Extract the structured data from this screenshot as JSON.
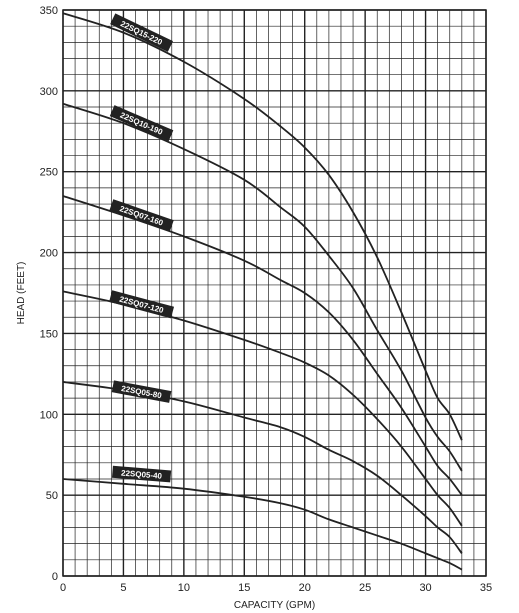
{
  "chart_data": {
    "type": "line",
    "xlabel": "CAPACITY (GPM)",
    "ylabel": "HEAD (FEET)",
    "xlim": [
      0,
      35
    ],
    "ylim": [
      0,
      350
    ],
    "x_ticks": [
      "0",
      "5",
      "10",
      "15",
      "20",
      "25",
      "30",
      "35"
    ],
    "y_ticks": [
      "0",
      "50",
      "100",
      "150",
      "200",
      "250",
      "300",
      "350"
    ],
    "grid": true,
    "series": [
      {
        "name": "22SQ15-220",
        "x": [
          0,
          5,
          10,
          15,
          18,
          20,
          22,
          24,
          26,
          28,
          30,
          31,
          32,
          33
        ],
        "y": [
          348,
          336,
          318,
          295,
          278,
          265,
          248,
          225,
          197,
          163,
          127,
          110,
          100,
          84
        ],
        "label_x": 6.5,
        "label_y": 336
      },
      {
        "name": "22SQ10-190",
        "x": [
          0,
          5,
          10,
          15,
          18,
          20,
          22,
          24,
          26,
          28,
          30,
          31,
          32,
          33
        ],
        "y": [
          292,
          280,
          264,
          245,
          228,
          216,
          198,
          178,
          152,
          127,
          98,
          86,
          77,
          65
        ],
        "label_x": 6.5,
        "label_y": 280
      },
      {
        "name": "22SQ07-160",
        "x": [
          0,
          5,
          10,
          15,
          18,
          20,
          22,
          24,
          26,
          28,
          30,
          31,
          32,
          33
        ],
        "y": [
          235,
          223,
          210,
          195,
          183,
          175,
          163,
          146,
          125,
          104,
          80,
          68,
          60,
          50
        ],
        "label_x": 6.5,
        "label_y": 223
      },
      {
        "name": "22SQ07-120",
        "x": [
          0,
          5,
          10,
          15,
          18,
          20,
          22,
          24,
          26,
          28,
          30,
          31,
          32,
          33
        ],
        "y": [
          176,
          168,
          158,
          146,
          138,
          132,
          124,
          112,
          97,
          80,
          60,
          50,
          42,
          31
        ],
        "label_x": 6.5,
        "label_y": 168
      },
      {
        "name": "22SQ05-80",
        "x": [
          0,
          5,
          10,
          15,
          18,
          20,
          22,
          24,
          26,
          28,
          30,
          31,
          32,
          33
        ],
        "y": [
          120,
          115,
          108,
          98,
          92,
          86,
          78,
          71,
          62,
          50,
          37,
          30,
          24,
          14
        ],
        "label_x": 6.5,
        "label_y": 114
      },
      {
        "name": "22SQ05-40",
        "x": [
          0,
          5,
          10,
          15,
          18,
          20,
          22,
          24,
          26,
          28,
          30,
          31,
          32,
          33
        ],
        "y": [
          60,
          57,
          54,
          49,
          45,
          41,
          35,
          30,
          25,
          20,
          14,
          11,
          8,
          4
        ],
        "label_x": 6.5,
        "label_y": 63
      }
    ]
  }
}
